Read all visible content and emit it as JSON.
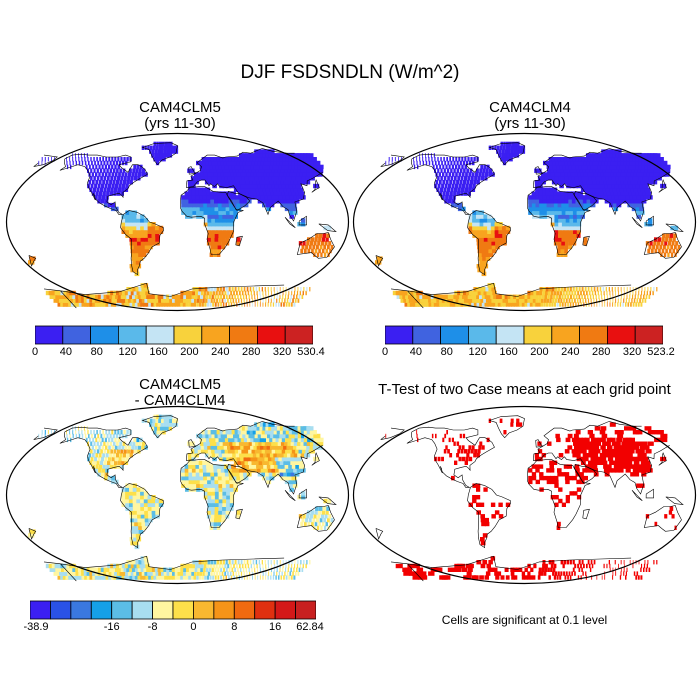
{
  "title": "DJF FSDSNDLN (W/m^2)",
  "panels": [
    {
      "id": "p1",
      "title": "CAM4CLM5",
      "subtitle": "(yrs 11-30)"
    },
    {
      "id": "p2",
      "title": "CAM4CLM4",
      "subtitle": "(yrs 11-30)"
    },
    {
      "id": "p3",
      "title": "CAM4CLM5",
      "subtitle": "- CAM4CLM4"
    },
    {
      "id": "p4",
      "title": "T-Test of two Case means at each grid point",
      "subtitle": ""
    }
  ],
  "colorbars": [
    {
      "id": "cb1",
      "labels": [
        "0",
        "40",
        "80",
        "120",
        "160",
        "200",
        "240",
        "280",
        "320",
        "530.4"
      ],
      "colors": [
        "#3b1ff2",
        "#4063e0",
        "#1e8fe8",
        "#5ab9ea",
        "#c4e4f4",
        "#f8d23c",
        "#f8a41f",
        "#f07a12",
        "#e81010",
        "#cc2222"
      ]
    },
    {
      "id": "cb2",
      "labels": [
        "0",
        "40",
        "80",
        "120",
        "160",
        "200",
        "240",
        "280",
        "320",
        "523.2"
      ],
      "colors": [
        "#3b1ff2",
        "#4063e0",
        "#1e8fe8",
        "#5ab9ea",
        "#c4e4f4",
        "#f8d23c",
        "#f8a41f",
        "#f07a12",
        "#e81010",
        "#cc2222"
      ]
    },
    {
      "id": "cb3",
      "labels": [
        "-38.9",
        "-16",
        "-8",
        "0",
        "8",
        "16",
        "62.84"
      ],
      "colors": [
        "#3b1ff2",
        "#2a52e6",
        "#3a78e0",
        "#15a0e8",
        "#5bbde6",
        "#a8def0",
        "#fff6a0",
        "#fde04a",
        "#f8b830",
        "#f59418",
        "#f06a10",
        "#e03010",
        "#d41818",
        "#c82020"
      ]
    }
  ],
  "note": "Cells are significant at 0.1 level"
}
